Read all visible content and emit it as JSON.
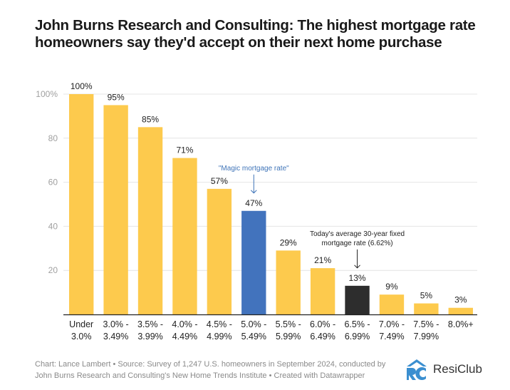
{
  "title": "John Burns Research and Consulting: The highest mortgage rate homeowners say they'd accept on their next home purchase",
  "chart_data": {
    "type": "bar",
    "title": "John Burns Research and Consulting: The highest mortgage rate homeowners say they'd accept on their next home purchase",
    "xlabel": "",
    "ylabel": "",
    "ylim": [
      0,
      100
    ],
    "yticks": [
      {
        "value": 100,
        "label": "100%"
      },
      {
        "value": 80,
        "label": "80"
      },
      {
        "value": 60,
        "label": "60"
      },
      {
        "value": 40,
        "label": "40"
      },
      {
        "value": 20,
        "label": "20"
      }
    ],
    "grid": true,
    "categories": [
      [
        "Under",
        "3.0%"
      ],
      [
        "3.0% -",
        "3.49%"
      ],
      [
        "3.5% -",
        "3.99%"
      ],
      [
        "4.0% -",
        "4.49%"
      ],
      [
        "4.5% -",
        "4.99%"
      ],
      [
        "5.0% -",
        "5.49%"
      ],
      [
        "5.5% -",
        "5.99%"
      ],
      [
        "6.0% -",
        "6.49%"
      ],
      [
        "6.5% -",
        "6.99%"
      ],
      [
        "7.0% -",
        "7.49%"
      ],
      [
        "7.5% -",
        "7.99%"
      ],
      [
        "8.0%+"
      ]
    ],
    "values": [
      100,
      95,
      85,
      71,
      57,
      47,
      29,
      21,
      13,
      9,
      5,
      3
    ],
    "value_labels": [
      "100%",
      "95%",
      "85%",
      "71%",
      "57%",
      "47%",
      "29%",
      "21%",
      "13%",
      "9%",
      "5%",
      "3%"
    ],
    "colors": {
      "default": "#fdca4d",
      "highlight_magic": "#4273bd",
      "highlight_current": "#2d2d2d"
    },
    "bar_color_keys": [
      "default",
      "default",
      "default",
      "default",
      "default",
      "highlight_magic",
      "default",
      "default",
      "highlight_current",
      "default",
      "default",
      "default"
    ],
    "annotations": [
      {
        "text": [
          "\"Magic mortgage rate\""
        ],
        "category_index": 5,
        "color": "#3f74b8"
      },
      {
        "text": [
          "Today's average 30-year fixed",
          "mortgage rate (6.62%)"
        ],
        "category_index": 8,
        "color": "#222222"
      }
    ]
  },
  "footer": {
    "line1": "Chart: Lance Lambert • Source: Survey of 1,247 U.S. homeowners in September 2024, conducted by",
    "line2": "John Burns Research and Consulting's New Home Trends Institute • Created with Datawrapper"
  },
  "logo": {
    "text": "ResiClub",
    "color": "#3b8fd0"
  }
}
